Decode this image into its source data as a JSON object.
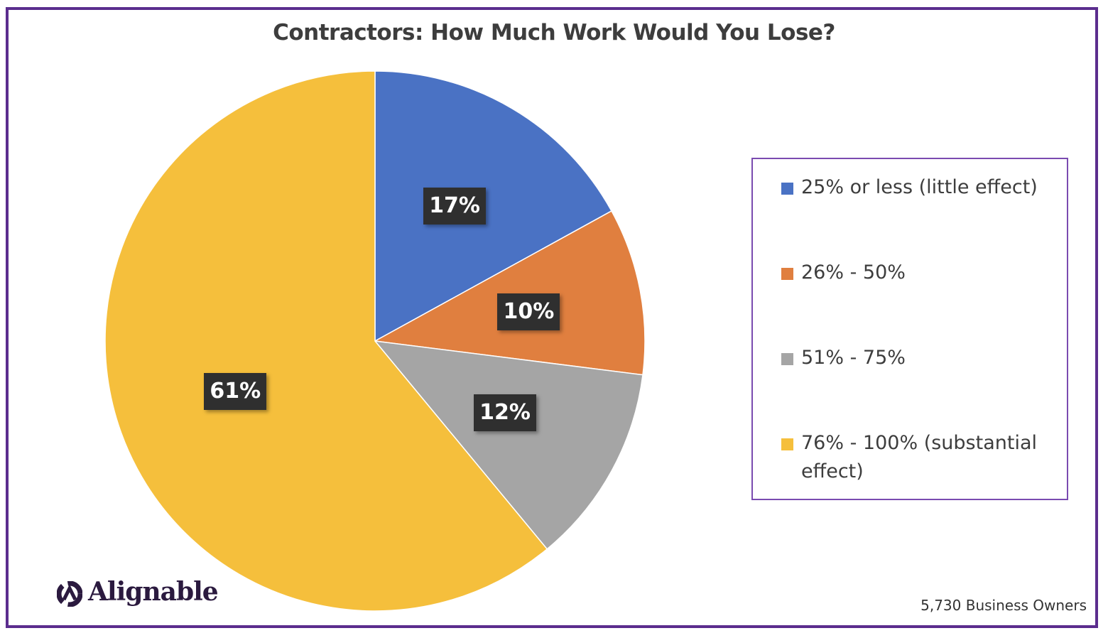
{
  "chart_data": {
    "type": "pie",
    "title": "Contractors: How Much Work Would You Lose?",
    "categories": [
      "25% or less (little effect)",
      "26% - 50%",
      "51% - 75%",
      "76% - 100% (substantial effect)"
    ],
    "values": [
      17,
      10,
      12,
      61
    ],
    "data_labels": [
      "17%",
      "10%",
      "12%",
      "61%"
    ],
    "colors": [
      "#4a72c4",
      "#e07f3f",
      "#a5a5a5",
      "#f5bf3c"
    ],
    "legend_placement": "right"
  },
  "legend": {
    "items": [
      {
        "label": "25% or less (little effect)",
        "color": "#4a72c4"
      },
      {
        "label": "26% - 50%",
        "color": "#e07f3f"
      },
      {
        "label": "51% - 75%",
        "color": "#a5a5a5"
      },
      {
        "label": "76% - 100% (substantial effect)",
        "color": "#f5bf3c"
      }
    ]
  },
  "branding": {
    "logo_text": "Alignable",
    "logo_icon": "alignable-logo-icon"
  },
  "footer": {
    "sample_size": "5,730 Business Owners"
  },
  "colors": {
    "frame_border": "#5b2d8e",
    "legend_border": "#7a4bb0",
    "label_background": "#2f2f2f"
  }
}
